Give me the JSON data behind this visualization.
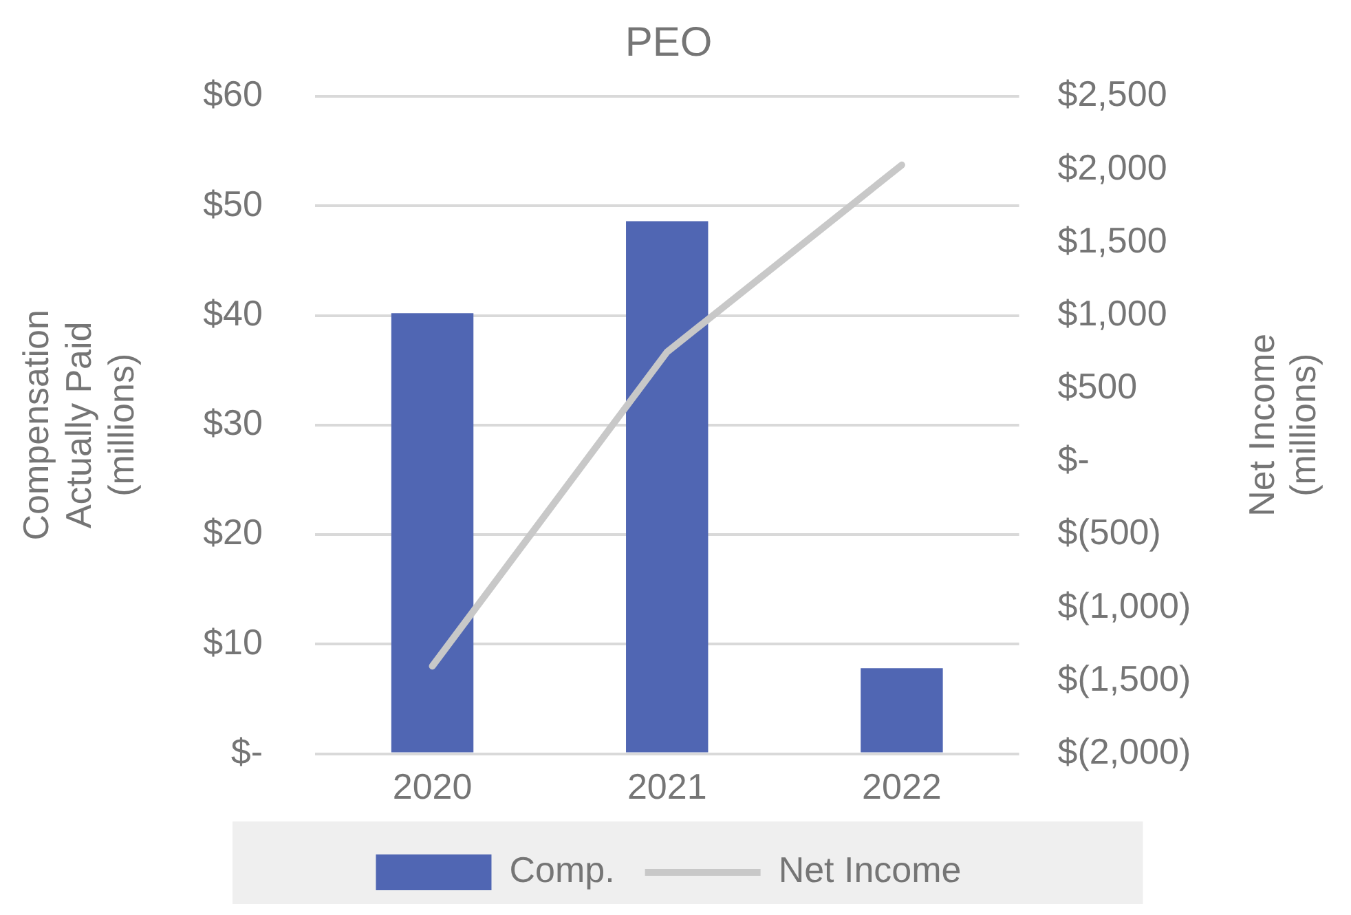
{
  "chart_data": {
    "type": "bar",
    "title": "PEO",
    "ylabel": "Compensation\nActually Paid\n(millions)",
    "y2label": "Net Income\n(millions)",
    "categories": [
      "2020",
      "2021",
      "2022"
    ],
    "series": [
      {
        "name": "Comp.",
        "color": "#5066b3",
        "values": [
          40.2,
          48.6,
          7.8
        ]
      },
      {
        "name": "Net Income",
        "type": "line",
        "axis": "y2",
        "color": "#c8c8c8",
        "values": [
          -1400,
          750,
          2030
        ]
      }
    ],
    "ylim": [
      0,
      60
    ],
    "yticks": [
      {
        "value": 0,
        "label": "$-"
      },
      {
        "value": 10,
        "label": "$10"
      },
      {
        "value": 20,
        "label": "$20"
      },
      {
        "value": 30,
        "label": "$30"
      },
      {
        "value": 40,
        "label": "$40"
      },
      {
        "value": 50,
        "label": "$50"
      },
      {
        "value": 60,
        "label": "$60"
      }
    ],
    "y2lim": [
      -2000,
      2500
    ],
    "y2ticks": [
      {
        "value": -2000,
        "label": "$(2,000)"
      },
      {
        "value": -1500,
        "label": "$(1,500)"
      },
      {
        "value": -1000,
        "label": "$(1,000)"
      },
      {
        "value": -500,
        "label": "$(500)"
      },
      {
        "value": 0,
        "label": "$-"
      },
      {
        "value": 500,
        "label": "$500"
      },
      {
        "value": 1000,
        "label": "$1,000"
      },
      {
        "value": 1500,
        "label": "$1,500"
      },
      {
        "value": 2000,
        "label": "$2,000"
      },
      {
        "value": 2500,
        "label": "$2,500"
      }
    ],
    "grid": "y",
    "legend": "bottom",
    "marker": "none",
    "line_style": "solid"
  }
}
